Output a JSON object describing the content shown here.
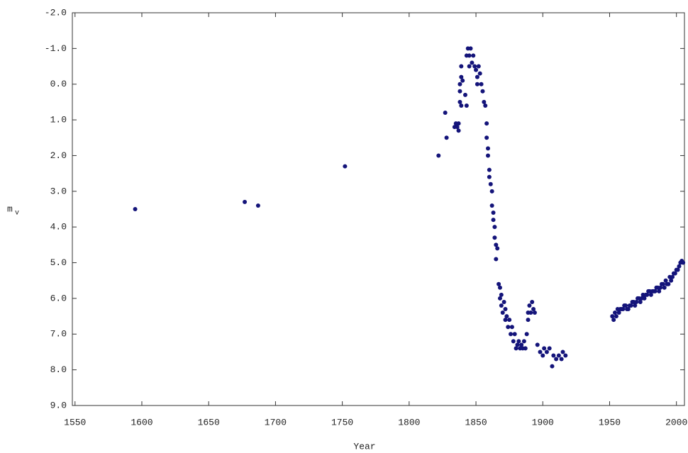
{
  "chart_data": {
    "type": "scatter",
    "x_label": "Year",
    "y_label": "m",
    "y_label_subscript": "v",
    "color": "#14147a",
    "xlim": [
      1548,
      2006
    ],
    "ylim": [
      -2,
      9
    ],
    "y_inverted": true,
    "xticks": [
      1550,
      1600,
      1650,
      1700,
      1750,
      1800,
      1850,
      1900,
      1950,
      2000
    ],
    "yticks": [
      {
        "value": -2,
        "label": "-2.0"
      },
      {
        "value": -1,
        "label": "-1.0"
      },
      {
        "value": 0,
        "label": "0.0"
      },
      {
        "value": 1,
        "label": "1.0"
      },
      {
        "value": 2,
        "label": "2.0"
      },
      {
        "value": 3,
        "label": "3.0"
      },
      {
        "value": 4,
        "label": "4.0"
      },
      {
        "value": 5,
        "label": "5.0"
      },
      {
        "value": 6,
        "label": "6.0"
      },
      {
        "value": 7,
        "label": "7.0"
      },
      {
        "value": 8,
        "label": "8.0"
      },
      {
        "value": 9,
        "label": "9.0"
      }
    ],
    "x": [
      1595,
      1677,
      1687,
      1752,
      1822,
      1827,
      1828,
      1834,
      1835,
      1836,
      1837,
      1837,
      1838,
      1838,
      1838,
      1839,
      1839,
      1839,
      1840,
      1842,
      1843,
      1843,
      1844,
      1845,
      1845,
      1846,
      1847,
      1848,
      1849,
      1850,
      1851,
      1851,
      1852,
      1853,
      1854,
      1855,
      1856,
      1857,
      1858,
      1858,
      1859,
      1859,
      1860,
      1860,
      1861,
      1862,
      1862,
      1863,
      1863,
      1864,
      1864,
      1865,
      1865,
      1866,
      1867,
      1868,
      1868,
      1869,
      1869,
      1870,
      1871,
      1872,
      1872,
      1873,
      1874,
      1875,
      1876,
      1877,
      1878,
      1879,
      1880,
      1881,
      1882,
      1883,
      1884,
      1885,
      1886,
      1887,
      1888,
      1889,
      1889,
      1890,
      1891,
      1892,
      1893,
      1894,
      1896,
      1898,
      1900,
      1901,
      1903,
      1905,
      1907,
      1908,
      1910,
      1912,
      1914,
      1915,
      1917,
      1952,
      1953,
      1954,
      1955,
      1956,
      1957,
      1958,
      1959,
      1960,
      1961,
      1962,
      1963,
      1964,
      1965,
      1966,
      1967,
      1968,
      1969,
      1970,
      1971,
      1972,
      1973,
      1974,
      1975,
      1976,
      1977,
      1978,
      1979,
      1980,
      1981,
      1982,
      1983,
      1984,
      1985,
      1986,
      1987,
      1988,
      1989,
      1990,
      1991,
      1992,
      1993,
      1994,
      1995,
      1996,
      1997,
      1998,
      1999,
      2000,
      2001,
      2002,
      2003,
      2004,
      2005
    ],
    "values": [
      3.5,
      3.3,
      3.4,
      2.3,
      2.0,
      0.8,
      1.5,
      1.2,
      1.1,
      1.2,
      1.1,
      1.3,
      0.5,
      0.2,
      0,
      -0.2,
      -0.5,
      0.6,
      -0.1,
      0.3,
      -0.8,
      0.6,
      -1.0,
      -0.8,
      -0.5,
      -1.0,
      -0.6,
      -0.8,
      -0.5,
      -0.4,
      -0.2,
      0,
      -0.5,
      -0.3,
      0,
      0.2,
      0.5,
      0.6,
      1.1,
      1.5,
      1.8,
      2.0,
      2.4,
      2.6,
      2.8,
      3.0,
      3.4,
      3.6,
      3.8,
      4.0,
      4.3,
      4.5,
      4.9,
      4.6,
      5.6,
      5.7,
      6.0,
      6.2,
      5.9,
      6.4,
      6.1,
      6.6,
      6.3,
      6.5,
      6.8,
      6.6,
      7.0,
      6.8,
      7.2,
      7.0,
      7.4,
      7.3,
      7.2,
      7.4,
      7.3,
      7.4,
      7.2,
      7.4,
      7.0,
      6.6,
      6.4,
      6.2,
      6.4,
      6.1,
      6.3,
      6.4,
      7.3,
      7.5,
      7.6,
      7.4,
      7.5,
      7.4,
      7.9,
      7.6,
      7.7,
      7.6,
      7.7,
      7.5,
      7.6,
      6.5,
      6.6,
      6.4,
      6.5,
      6.3,
      6.4,
      6.3,
      6.3,
      6.3,
      6.2,
      6.2,
      6.3,
      6.3,
      6.2,
      6.2,
      6.1,
      6.1,
      6.2,
      6.1,
      6.0,
      6.0,
      6.1,
      6.0,
      5.9,
      6.0,
      5.9,
      5.9,
      5.8,
      5.8,
      5.9,
      5.8,
      5.8,
      5.8,
      5.7,
      5.7,
      5.8,
      5.7,
      5.6,
      5.6,
      5.7,
      5.5,
      5.6,
      5.6,
      5.4,
      5.5,
      5.4,
      5.3,
      5.3,
      5.2,
      5.2,
      5.1,
      5.0,
      4.95,
      5.0
    ]
  }
}
